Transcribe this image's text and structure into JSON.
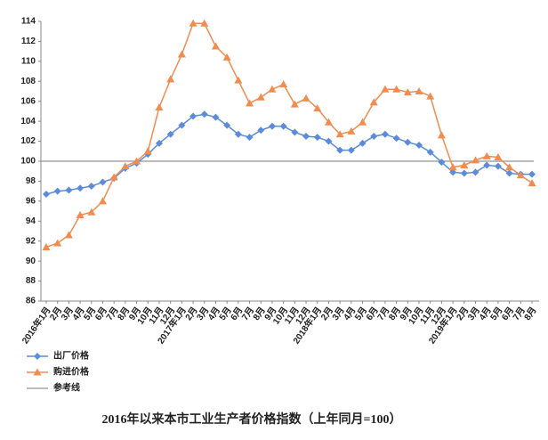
{
  "chart_data": {
    "type": "line",
    "caption": "2016年以来本市工业生产者价格指数（上年同月=100）",
    "categories": [
      "2016年1月",
      "2月",
      "3月",
      "4月",
      "5月",
      "6月",
      "7月",
      "8月",
      "9月",
      "10月",
      "11月",
      "12月",
      "2017年1月",
      "2月",
      "3月",
      "4月",
      "5月",
      "6月",
      "7月",
      "8月",
      "9月",
      "10月",
      "11月",
      "12月",
      "2018年1月",
      "2月",
      "3月",
      "4月",
      "5月",
      "6月",
      "7月",
      "8月",
      "9月",
      "10月",
      "11月",
      "12月",
      "2019年1月",
      "2月",
      "3月",
      "4月",
      "5月",
      "6月",
      "7月",
      "8月"
    ],
    "series": [
      {
        "name": "出厂价格",
        "color": "#5b8bd9",
        "marker": "diamond",
        "values": [
          96.7,
          97.0,
          97.1,
          97.3,
          97.5,
          97.9,
          98.3,
          99.3,
          99.8,
          100.7,
          101.8,
          102.7,
          103.6,
          104.5,
          104.7,
          104.4,
          103.6,
          102.7,
          102.4,
          103.1,
          103.5,
          103.5,
          102.9,
          102.5,
          102.4,
          102.0,
          101.1,
          101.1,
          101.8,
          102.5,
          102.7,
          102.3,
          101.9,
          101.6,
          100.9,
          99.9,
          98.9,
          98.8,
          98.9,
          99.6,
          99.5,
          98.8,
          98.7,
          98.7
        ]
      },
      {
        "name": "购进价格",
        "color": "#f08c50",
        "marker": "triangle",
        "values": [
          91.4,
          91.8,
          92.6,
          94.6,
          94.9,
          96.0,
          98.4,
          99.5,
          100.0,
          101.0,
          105.4,
          108.2,
          110.7,
          113.8,
          113.8,
          111.5,
          110.4,
          108.1,
          105.8,
          106.4,
          107.2,
          107.7,
          105.7,
          106.3,
          105.3,
          103.9,
          102.7,
          103.0,
          103.9,
          105.9,
          107.2,
          107.2,
          106.9,
          107.0,
          106.5,
          102.6,
          99.4,
          99.6,
          100.1,
          100.5,
          100.4,
          99.4,
          98.6,
          97.8
        ]
      }
    ],
    "reference": {
      "name": "参考线",
      "value": 100,
      "color": "#a6a6a6"
    },
    "ylim": [
      86,
      114
    ],
    "yticks": [
      86,
      88,
      90,
      92,
      94,
      96,
      98,
      100,
      102,
      104,
      106,
      108,
      110,
      112,
      114
    ]
  }
}
